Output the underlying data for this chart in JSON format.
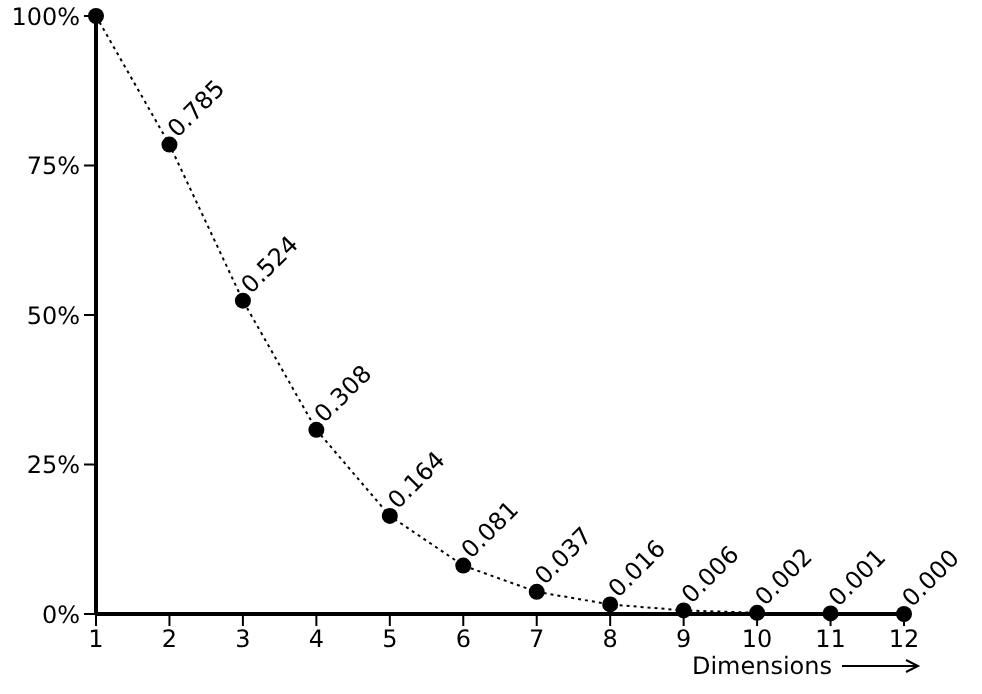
{
  "chart_data": {
    "type": "line",
    "xlabel": "Dimensions",
    "x": [
      1,
      2,
      3,
      4,
      5,
      6,
      7,
      8,
      9,
      10,
      11,
      12
    ],
    "values": [
      1,
      0.785,
      0.524,
      0.308,
      0.164,
      0.081,
      0.037,
      0.016,
      0.006,
      0.002,
      0.001,
      0.0
    ],
    "value_labels": [
      null,
      "0.785",
      "0.524",
      "0.308",
      "0.164",
      "0.081",
      "0.037",
      "0.016",
      "0.006",
      "0.002",
      "0.001",
      "0.000"
    ],
    "color": "#000000",
    "marker": "circle",
    "line_style": "dotted",
    "grid": false,
    "legend": false,
    "xlim": [
      1,
      12
    ],
    "xticks": [
      1,
      2,
      3,
      4,
      5,
      6,
      7,
      8,
      9,
      10,
      11,
      12
    ],
    "ylim": [
      0,
      1
    ],
    "yticks": [
      {
        "value": 0,
        "label": "0%"
      },
      {
        "value": 0.25,
        "label": "25%"
      },
      {
        "value": 0.5,
        "label": "50%"
      },
      {
        "value": 0.75,
        "label": "75%"
      },
      {
        "value": 1,
        "label": "100%"
      }
    ]
  }
}
